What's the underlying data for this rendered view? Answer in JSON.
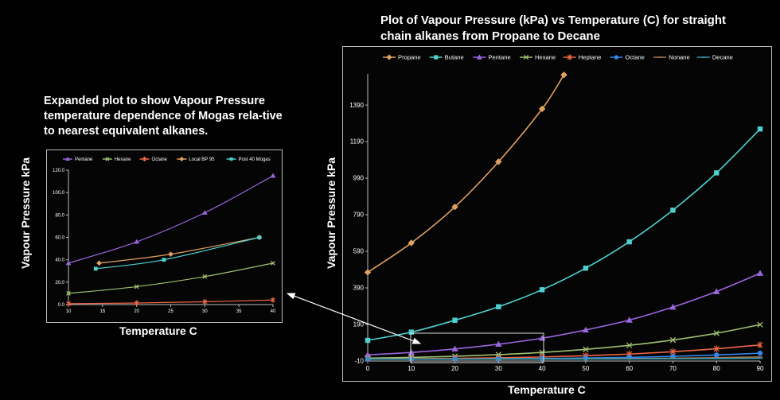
{
  "titles": {
    "main": "Plot of Vapour Pressure (kPa) vs Temperature (C) for straight chain alkanes from Propane to Decane",
    "expanded": "Expanded plot to show Vapour Pressure temperature dependence of Mogas rela-tive to nearest equivalent alkanes."
  },
  "chart_data": [
    {
      "type": "line",
      "title": "Plot of Vapour Pressure (kPa) vs Temperature (C) for straight chain alkanes from Propane to Decane",
      "xlabel": "Temperature C",
      "ylabel": "Vapour Pressure kPa",
      "x_ticks": [
        0,
        10,
        20,
        30,
        40,
        50,
        60,
        70,
        80,
        90
      ],
      "y_ticks": [
        -10,
        190,
        390,
        590,
        790,
        990,
        1190,
        1390
      ],
      "xlim": [
        0,
        90
      ],
      "ylim": [
        -10,
        1560
      ],
      "legend_position": "top",
      "grid": false,
      "series": [
        {
          "name": "Propane",
          "color": "#e0a060",
          "marker": "diamond",
          "x": [
            0,
            10,
            20,
            30,
            40,
            45
          ],
          "y": [
            475,
            636,
            833,
            1080,
            1369,
            1555
          ]
        },
        {
          "name": "Butane",
          "color": "#4fd0d0",
          "marker": "square",
          "x": [
            0,
            10,
            20,
            30,
            40,
            50,
            60,
            70,
            80,
            90
          ],
          "y": [
            103,
            148,
            213,
            287,
            380,
            498,
            642,
            815,
            1019,
            1259
          ]
        },
        {
          "name": "Pentane",
          "color": "#9966dd",
          "marker": "triangle",
          "x": [
            0,
            10,
            20,
            30,
            40,
            50,
            60,
            70,
            80,
            90
          ],
          "y": [
            24,
            37,
            56,
            82,
            115,
            160,
            214,
            285,
            370,
            470
          ]
        },
        {
          "name": "Hexane",
          "color": "#9fc070",
          "marker": "x",
          "x": [
            0,
            10,
            20,
            30,
            40,
            50,
            60,
            70,
            80,
            90
          ],
          "y": [
            6,
            10,
            16,
            25,
            37,
            54,
            76,
            105,
            142,
            189
          ]
        },
        {
          "name": "Heptane",
          "color": "#ee6644",
          "marker": "star",
          "x": [
            0,
            10,
            20,
            30,
            40,
            50,
            60,
            70,
            80,
            90
          ],
          "y": [
            1.5,
            3.0,
            4.7,
            7.7,
            12.3,
            19,
            28,
            41,
            57,
            78
          ]
        },
        {
          "name": "Octane",
          "color": "#3388ee",
          "marker": "circle",
          "x": [
            0,
            10,
            20,
            30,
            40,
            50,
            60,
            70,
            80,
            90
          ],
          "y": [
            0.4,
            0.8,
            1.4,
            2.5,
            4.1,
            6.5,
            10,
            15.5,
            23,
            33
          ]
        },
        {
          "name": "Nonane",
          "color": "#aa7755",
          "marker": "dash",
          "x": [
            0,
            10,
            20,
            30,
            40,
            50,
            60,
            70,
            80,
            90
          ],
          "y": [
            0.1,
            0.2,
            0.4,
            0.8,
            1.3,
            2.2,
            3.5,
            5.5,
            8.3,
            12.2
          ]
        },
        {
          "name": "Decane",
          "color": "#3399aa",
          "marker": "dash",
          "x": [
            0,
            10,
            20,
            30,
            40,
            50,
            60,
            70,
            80,
            90
          ],
          "y": [
            0.03,
            0.07,
            0.15,
            0.28,
            0.5,
            0.85,
            1.4,
            2.2,
            3.4,
            5.1
          ]
        }
      ]
    },
    {
      "type": "line",
      "title": "Expanded plot to show Vapour Pressure temperature dependence of Mogas rela-tive to nearest equivalent alkanes.",
      "xlabel": "Temperature C",
      "ylabel": "Vapour Pressure kPa",
      "x_ticks": [
        10,
        15,
        20,
        25,
        30,
        35,
        40
      ],
      "y_ticks": [
        0.0,
        20.0,
        40.0,
        60.0,
        80.0,
        100.0,
        120.0
      ],
      "y_tick_labels": [
        "0.0",
        "20.0",
        "40.0",
        "60.0",
        "80.0",
        "100.0",
        "120.0"
      ],
      "xlim": [
        10,
        40
      ],
      "ylim": [
        0,
        120
      ],
      "legend_position": "top",
      "grid": false,
      "series": [
        {
          "name": "Pentane",
          "color": "#9966dd",
          "marker": "triangle",
          "x": [
            10,
            20,
            30,
            40
          ],
          "y": [
            37,
            56,
            82,
            115
          ]
        },
        {
          "name": "Hexane",
          "color": "#9fc070",
          "marker": "x",
          "x": [
            10,
            20,
            30,
            40
          ],
          "y": [
            10,
            16,
            25,
            37
          ]
        },
        {
          "name": "Octane",
          "color": "#ee6644",
          "marker": "star",
          "x": [
            10,
            20,
            30,
            40
          ],
          "y": [
            0.8,
            1.4,
            2.5,
            4.1
          ]
        },
        {
          "name": "Local BP 95",
          "color": "#e0a060",
          "marker": "diamond",
          "x": [
            14.5,
            25,
            38
          ],
          "y": [
            37,
            45,
            60
          ]
        },
        {
          "name": "Post 40 Mogas",
          "color": "#4fd0d0",
          "marker": "square",
          "x": [
            14,
            24,
            38
          ],
          "y": [
            32,
            40,
            60
          ]
        }
      ]
    }
  ]
}
